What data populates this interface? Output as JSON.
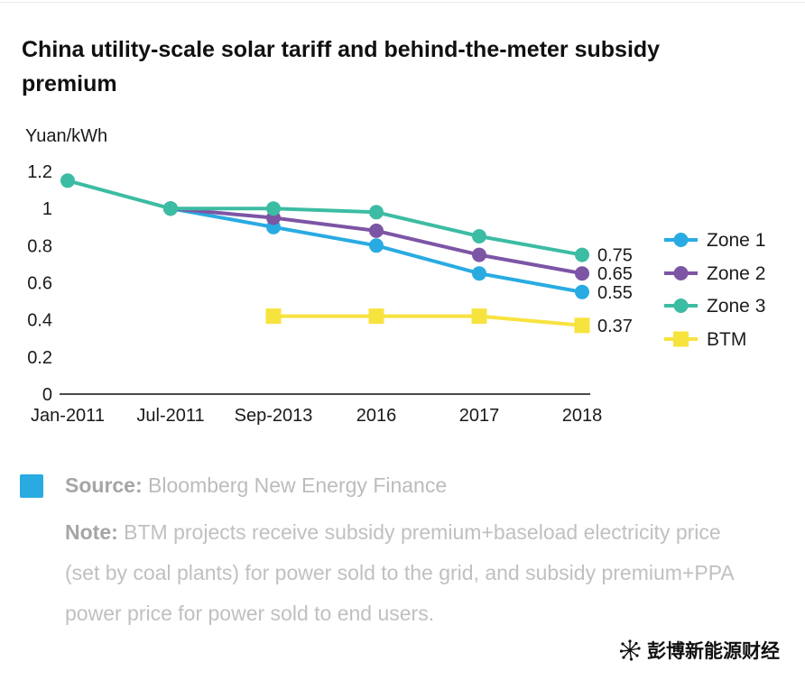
{
  "title": "China utility-scale solar tariff and behind-the-meter subsidy premium",
  "chart_data": {
    "type": "line",
    "title": "China utility-scale solar tariff and behind-the-meter subsidy premium",
    "ylabel": "Yuan/kWh",
    "xlabel": "",
    "categories": [
      "Jan-2011",
      "Jul-2011",
      "Sep-2013",
      "2016",
      "2017",
      "2018"
    ],
    "yticks": [
      1.2,
      1,
      0.8,
      0.6,
      0.4,
      0.2,
      0
    ],
    "ylim": [
      0,
      1.2
    ],
    "grid": false,
    "legend_position": "right",
    "series": [
      {
        "name": "Zone 1",
        "color": "#29abe2",
        "marker": "circle",
        "values": [
          null,
          1.0,
          0.9,
          0.8,
          0.65,
          0.55
        ],
        "end_label": "0.55"
      },
      {
        "name": "Zone 2",
        "color": "#7d55a5",
        "marker": "circle",
        "values": [
          null,
          1.0,
          0.95,
          0.88,
          0.75,
          0.65
        ],
        "end_label": "0.65"
      },
      {
        "name": "Zone 3",
        "color": "#3cbca3",
        "marker": "circle",
        "values": [
          1.15,
          1.0,
          1.0,
          0.98,
          0.85,
          0.75
        ],
        "end_label": "0.75"
      },
      {
        "name": "BTM",
        "color": "#f7e33e",
        "marker": "square",
        "values": [
          null,
          null,
          0.42,
          0.42,
          0.42,
          0.37
        ],
        "end_label": "0.37"
      }
    ]
  },
  "source": {
    "label": "Source:",
    "text": "Bloomberg New Energy Finance"
  },
  "note": {
    "label": "Note:",
    "text": "BTM projects receive subsidy premium+baseload electricity price (set by coal plants) for power sold to the grid, and subsidy premium+PPA power price for power sold to end users."
  },
  "watermark": "彭博新能源财经",
  "colors": {
    "accent_blue": "#29abe2"
  }
}
